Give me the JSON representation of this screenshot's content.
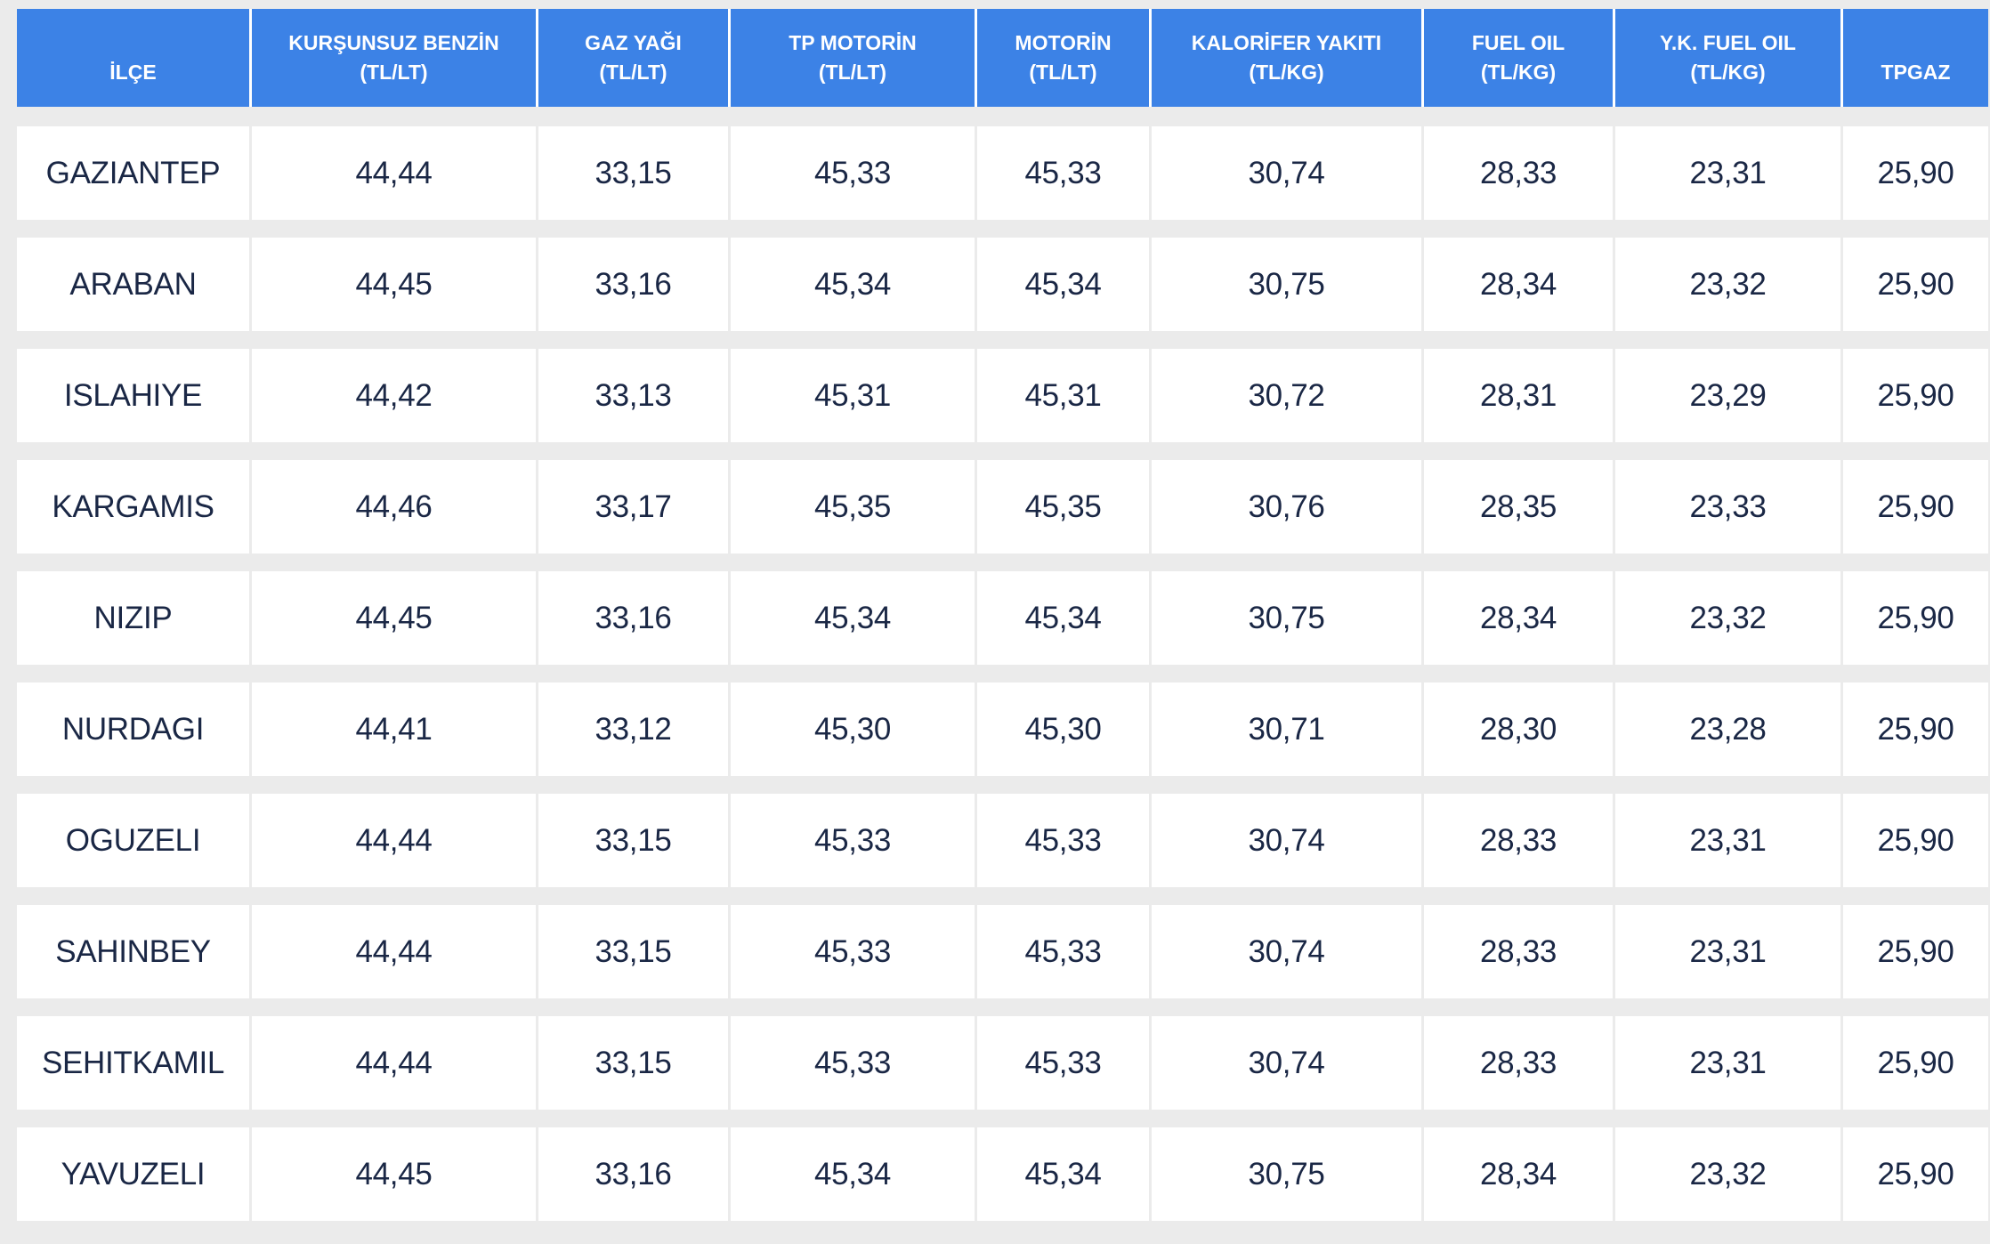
{
  "page": {
    "background_color": "#ebebeb"
  },
  "chart_data": {
    "type": "table",
    "columns": [
      {
        "id": "ilce",
        "line1": "",
        "line2": "İLÇE"
      },
      {
        "id": "kursunsuz-benzin",
        "line1": "KURŞUNSUZ BENZİN",
        "line2": "(TL/LT)"
      },
      {
        "id": "gaz-yagi",
        "line1": "GAZ YAĞI",
        "line2": "(TL/LT)"
      },
      {
        "id": "tp-motorin",
        "line1": "TP MOTORİN",
        "line2": "(TL/LT)"
      },
      {
        "id": "motorin",
        "line1": "MOTORİN",
        "line2": "(TL/LT)"
      },
      {
        "id": "kalorifer-yakiti",
        "line1": "KALORİFER YAKITI",
        "line2": "(TL/KG)"
      },
      {
        "id": "fuel-oil",
        "line1": "FUEL OIL",
        "line2": "(TL/KG)"
      },
      {
        "id": "yk-fuel-oil",
        "line1": "Y.K. FUEL OIL",
        "line2": "(TL/KG)"
      },
      {
        "id": "tpgaz",
        "line1": "",
        "line2": "TPGAZ"
      }
    ],
    "rows": [
      {
        "district": "GAZIANTEP",
        "values": [
          "44,44",
          "33,15",
          "45,33",
          "45,33",
          "30,74",
          "28,33",
          "23,31",
          "25,90"
        ]
      },
      {
        "district": "ARABAN",
        "values": [
          "44,45",
          "33,16",
          "45,34",
          "45,34",
          "30,75",
          "28,34",
          "23,32",
          "25,90"
        ]
      },
      {
        "district": "ISLAHIYE",
        "values": [
          "44,42",
          "33,13",
          "45,31",
          "45,31",
          "30,72",
          "28,31",
          "23,29",
          "25,90"
        ]
      },
      {
        "district": "KARGAMIS",
        "values": [
          "44,46",
          "33,17",
          "45,35",
          "45,35",
          "30,76",
          "28,35",
          "23,33",
          "25,90"
        ]
      },
      {
        "district": "NIZIP",
        "values": [
          "44,45",
          "33,16",
          "45,34",
          "45,34",
          "30,75",
          "28,34",
          "23,32",
          "25,90"
        ]
      },
      {
        "district": "NURDAGI",
        "values": [
          "44,41",
          "33,12",
          "45,30",
          "45,30",
          "30,71",
          "28,30",
          "23,28",
          "25,90"
        ]
      },
      {
        "district": "OGUZELI",
        "values": [
          "44,44",
          "33,15",
          "45,33",
          "45,33",
          "30,74",
          "28,33",
          "23,31",
          "25,90"
        ]
      },
      {
        "district": "SAHINBEY",
        "values": [
          "44,44",
          "33,15",
          "45,33",
          "45,33",
          "30,74",
          "28,33",
          "23,31",
          "25,90"
        ]
      },
      {
        "district": "SEHITKAMIL",
        "values": [
          "44,44",
          "33,15",
          "45,33",
          "45,33",
          "30,74",
          "28,33",
          "23,31",
          "25,90"
        ]
      },
      {
        "district": "YAVUZELI",
        "values": [
          "44,45",
          "33,16",
          "45,34",
          "45,34",
          "30,75",
          "28,34",
          "23,32",
          "25,90"
        ]
      }
    ],
    "colors": {
      "header_bg": "#3c82e6",
      "header_text": "#ffffff",
      "row_bg": "#ffffff",
      "cell_text": "#1a2745",
      "page_bg": "#ebebeb"
    },
    "layout": {
      "legend": "none",
      "grid": "vertical separators between columns, gray gaps between rows",
      "value_format": "comma decimal separator (Turkish)"
    }
  }
}
